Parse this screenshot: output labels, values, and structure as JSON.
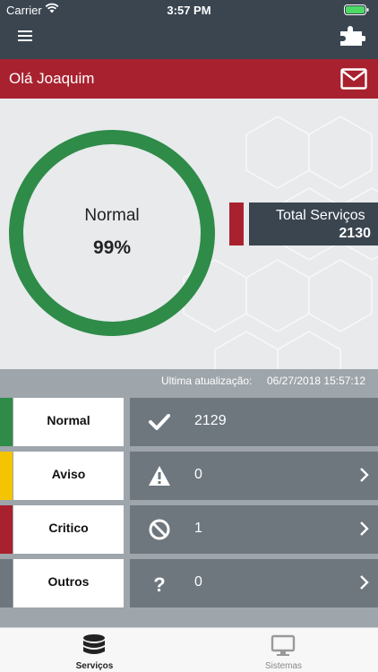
{
  "status_bar": {
    "carrier": "Carrier",
    "time": "3:57 PM"
  },
  "nav": {
    "menu_icon": "hamburger-icon",
    "action_icon": "puzzle-icon"
  },
  "greeting": {
    "text": "Olá Joaquim",
    "mail_icon": "mail-icon"
  },
  "summary": {
    "status_label": "Normal",
    "percent_text": "99%",
    "percent_value": 99,
    "ring_color": "#2e8b48",
    "total_label": "Total Serviços",
    "total_value": "2130"
  },
  "last_update": {
    "label": "Ultima atualização:",
    "value": "06/27/2018 15:57:12"
  },
  "rows": [
    {
      "label": "Normal",
      "icon": "checkmark-icon",
      "count": "2129",
      "color": "#2e8b48",
      "chevron": false
    },
    {
      "label": "Aviso",
      "icon": "warning-icon",
      "count": "0",
      "color": "#f5c400",
      "chevron": true
    },
    {
      "label": "Critico",
      "icon": "prohibited-icon",
      "count": "1",
      "color": "#a8212e",
      "chevron": true
    },
    {
      "label": "Outros",
      "icon": "question-icon",
      "count": "0",
      "color": "#6e767e",
      "chevron": true
    }
  ],
  "tabs": [
    {
      "label": "Serviços",
      "icon": "database-icon",
      "active": true
    },
    {
      "label": "Sistemas",
      "icon": "monitor-icon",
      "active": false
    }
  ],
  "colors": {
    "dark": "#3a4550",
    "accent_red": "#a8212e",
    "row_bg": "#6e767e"
  }
}
